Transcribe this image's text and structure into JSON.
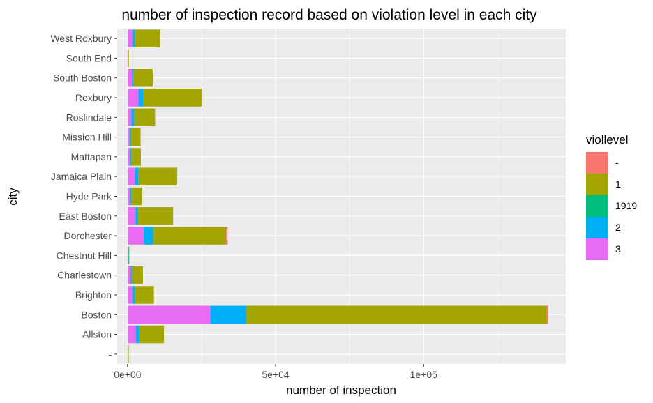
{
  "chart_data": {
    "type": "bar",
    "orientation": "horizontal",
    "stacked": true,
    "title": "number of inspection record based on violation level in each city",
    "xlabel": "number of inspection",
    "ylabel": "city",
    "xlim": [
      -3500,
      148000
    ],
    "x_ticks": [
      {
        "value": 0,
        "label": "0e+00"
      },
      {
        "value": 50000,
        "label": "5e+04"
      },
      {
        "value": 100000,
        "label": "1e+05"
      }
    ],
    "categories": [
      "-",
      "Allston",
      "Boston",
      "Brighton",
      "Charlestown",
      "Chestnut Hill",
      "Dorchester",
      "East Boston",
      "Hyde Park",
      "Jamaica Plain",
      "Mattapan",
      "Mission Hill",
      "Roslindale",
      "Roxbury",
      "South Boston",
      "South End",
      "West Roxbury"
    ],
    "legend": {
      "title": "viollevel",
      "position": "right"
    },
    "series": [
      {
        "name": "3",
        "color": "#E76BF3",
        "values": [
          0,
          2800,
          28000,
          1600,
          1000,
          150,
          5500,
          2700,
          800,
          2600,
          800,
          700,
          1300,
          3700,
          1500,
          120,
          1700
        ]
      },
      {
        "name": "2",
        "color": "#00B0F6",
        "values": [
          0,
          1000,
          12000,
          800,
          400,
          250,
          3300,
          900,
          500,
          1100,
          500,
          400,
          1000,
          1700,
          600,
          120,
          700
        ]
      },
      {
        "name": "1919",
        "color": "#00BF7D",
        "values": [
          0,
          0,
          0,
          0,
          0,
          0,
          0,
          0,
          0,
          0,
          0,
          0,
          0,
          0,
          0,
          0,
          0
        ]
      },
      {
        "name": "1",
        "color": "#A3A500",
        "values": [
          400,
          8500,
          101500,
          6500,
          3800,
          100,
          24500,
          11800,
          3700,
          12800,
          3200,
          3300,
          7000,
          19600,
          6400,
          60,
          8700
        ]
      },
      {
        "name": "-",
        "color": "#F8766D",
        "values": [
          0,
          0,
          500,
          0,
          0,
          0,
          500,
          0,
          0,
          0,
          0,
          0,
          0,
          0,
          0,
          0,
          0
        ]
      }
    ]
  }
}
